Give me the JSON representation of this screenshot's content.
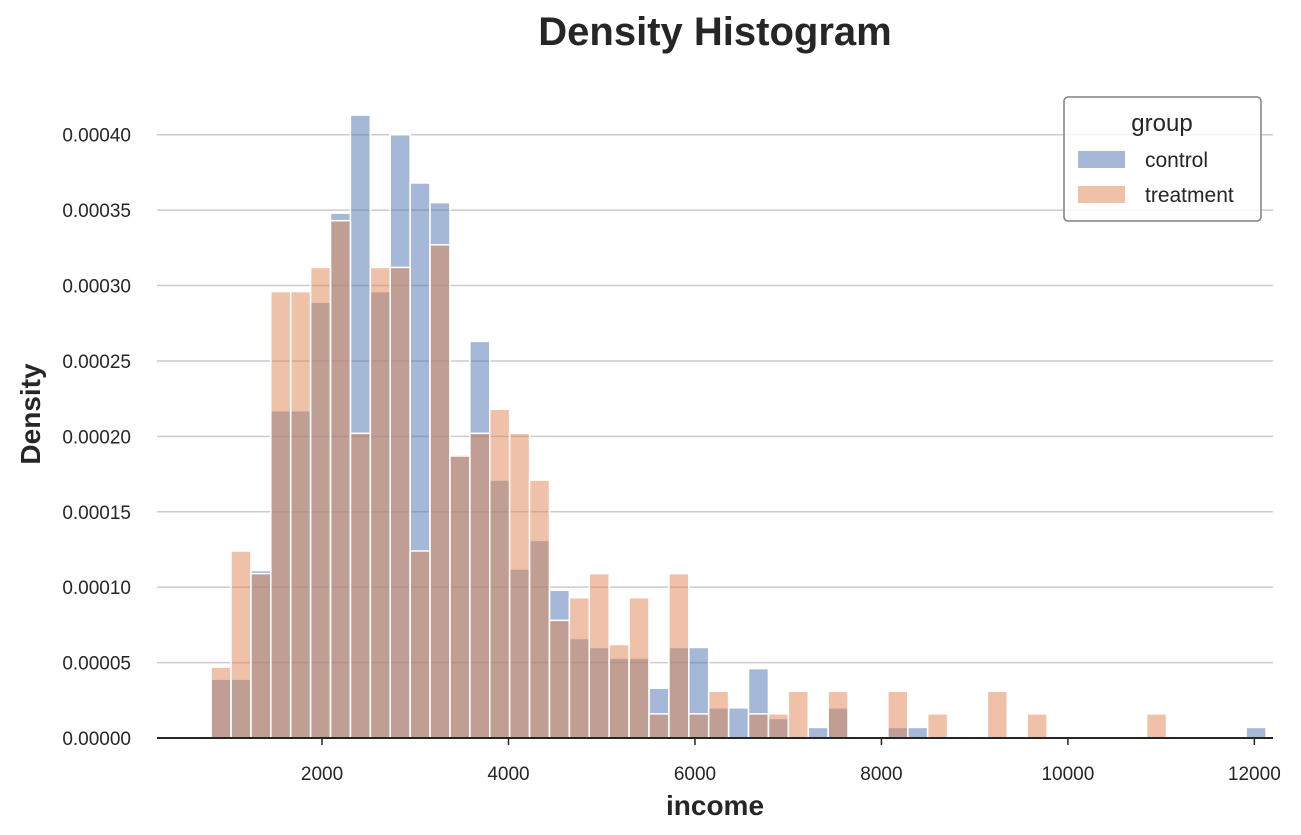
{
  "chart_data": {
    "type": "histogram",
    "title": "Density Histogram",
    "xlabel": "income",
    "ylabel": "Density",
    "xlim": [
      230,
      12200
    ],
    "ylim": [
      0,
      0.000425
    ],
    "xticks": [
      "2000",
      "4000",
      "6000",
      "8000",
      "10000",
      "12000"
    ],
    "xtick_values": [
      2000,
      4000,
      6000,
      8000,
      10000,
      12000
    ],
    "yticks": [
      "0.00000",
      "0.00005",
      "0.00010",
      "0.00015",
      "0.00020",
      "0.00025",
      "0.00030",
      "0.00035",
      "0.00040"
    ],
    "ytick_values": [
      0,
      5e-05,
      0.0001,
      0.00015,
      0.0002,
      0.00025,
      0.0003,
      0.00035,
      0.0004
    ],
    "grid": "horizontal",
    "bin_start": 810,
    "bin_width": 213.5,
    "legend": {
      "title": "group",
      "placement": "top-right"
    },
    "series": [
      {
        "name": "control",
        "color": "#4c72b0",
        "values": [
          3.9e-05,
          3.9e-05,
          0.000111,
          0.000217,
          0.000217,
          0.000289,
          0.000348,
          0.000413,
          0.000296,
          0.0004,
          0.000368,
          0.000355,
          0.000188,
          0.000263,
          0.000171,
          0.000112,
          0.000131,
          9.8e-05,
          6.6e-05,
          6e-05,
          5.3e-05,
          5.3e-05,
          3.3e-05,
          6e-05,
          6e-05,
          2e-05,
          2e-05,
          4.6e-05,
          1.3e-05,
          0,
          7e-06,
          2e-05,
          0,
          0,
          7e-06,
          7e-06,
          0,
          0,
          0,
          0,
          0,
          0,
          0,
          0,
          0,
          0,
          0,
          0,
          0,
          0,
          0,
          0,
          7e-06,
          0
        ]
      },
      {
        "name": "treatment",
        "color": "#dd8452",
        "values": [
          4.7e-05,
          0.000124,
          0.000109,
          0.000296,
          0.000296,
          0.000312,
          0.000343,
          0.000202,
          0.000312,
          0.000312,
          0.000124,
          0.000327,
          0.000187,
          0.000202,
          0.000218,
          0.000202,
          0.000171,
          7.8e-05,
          9.3e-05,
          0.000109,
          6.2e-05,
          9.3e-05,
          1.6e-05,
          0.000109,
          1.6e-05,
          3.1e-05,
          0,
          1.6e-05,
          1.6e-05,
          3.1e-05,
          0,
          3.1e-05,
          0,
          0,
          3.1e-05,
          0,
          1.6e-05,
          0,
          0,
          3.1e-05,
          0,
          1.6e-05,
          0,
          0,
          0,
          0,
          0,
          1.6e-05,
          0,
          0,
          0,
          0,
          0,
          0
        ]
      }
    ]
  }
}
